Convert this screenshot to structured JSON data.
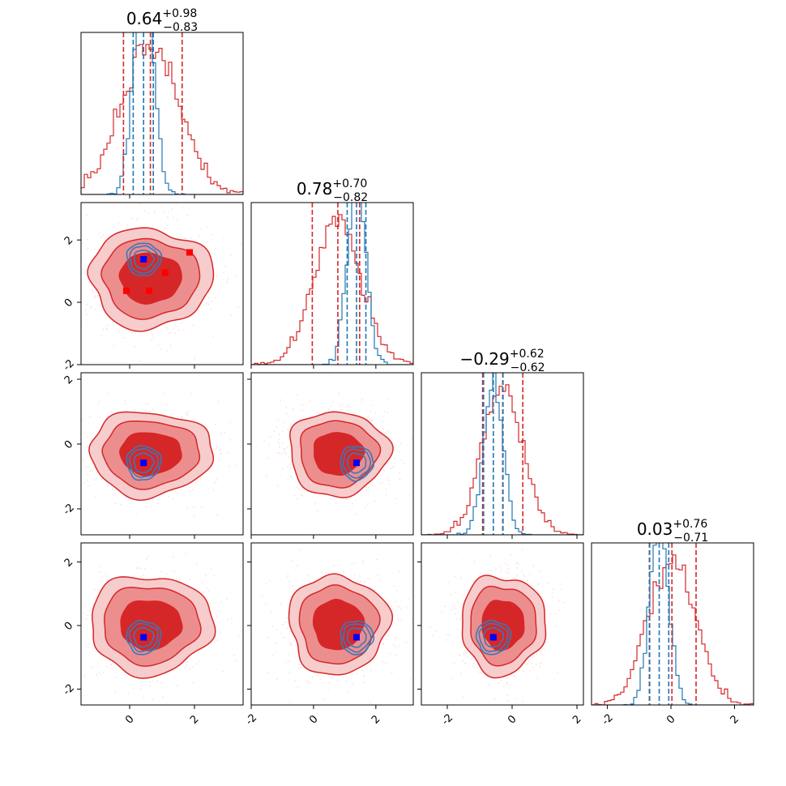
{
  "chart_data": {
    "type": "corner",
    "params": 4,
    "colors": {
      "main": "#d62728",
      "reference": "#1f77b4",
      "marker_main": "#ff0000",
      "marker_ref": "#0000ff"
    },
    "axis_range": [
      [
        -1.5,
        3.5
      ],
      [
        -2.0,
        3.2
      ],
      [
        -2.8,
        2.2
      ],
      [
        -2.5,
        2.6
      ]
    ],
    "tick_labels": [
      "-2",
      "0",
      "2"
    ],
    "titles": [
      {
        "median": "0.64",
        "upper": "+0.98",
        "lower": "−0.83"
      },
      {
        "median": "0.78",
        "upper": "+0.70",
        "lower": "−0.82"
      },
      {
        "median": "−0.29",
        "upper": "+0.62",
        "lower": "−0.62"
      },
      {
        "median": "0.03",
        "upper": "+0.76",
        "lower": "−0.71"
      }
    ],
    "quantiles_main": [
      [
        -0.19,
        0.64,
        1.62
      ],
      [
        -0.04,
        0.78,
        1.48
      ],
      [
        -0.91,
        -0.29,
        0.33
      ],
      [
        -0.68,
        0.03,
        0.79
      ]
    ],
    "quantiles_ref": [
      [
        0.11,
        0.43,
        0.73
      ],
      [
        1.08,
        1.38,
        1.68
      ],
      [
        -0.88,
        -0.58,
        -0.28
      ],
      [
        -0.67,
        -0.37,
        -0.07
      ]
    ],
    "markers_main": [
      [
        -0.1,
        0.37
      ],
      [
        0.6,
        0.37
      ],
      [
        1.1,
        0.95
      ],
      [
        1.85,
        1.6
      ]
    ],
    "marker_ref": [
      0.43,
      1.38,
      -0.58,
      -0.37
    ],
    "main_dist": {
      "mean": [
        0.64,
        0.78,
        -0.29,
        0.03
      ],
      "sd": [
        0.9,
        0.76,
        0.62,
        0.74
      ]
    },
    "ref_dist": {
      "mean": [
        0.43,
        1.38,
        -0.58,
        -0.37
      ],
      "sd": [
        0.3,
        0.3,
        0.3,
        0.3
      ]
    }
  }
}
